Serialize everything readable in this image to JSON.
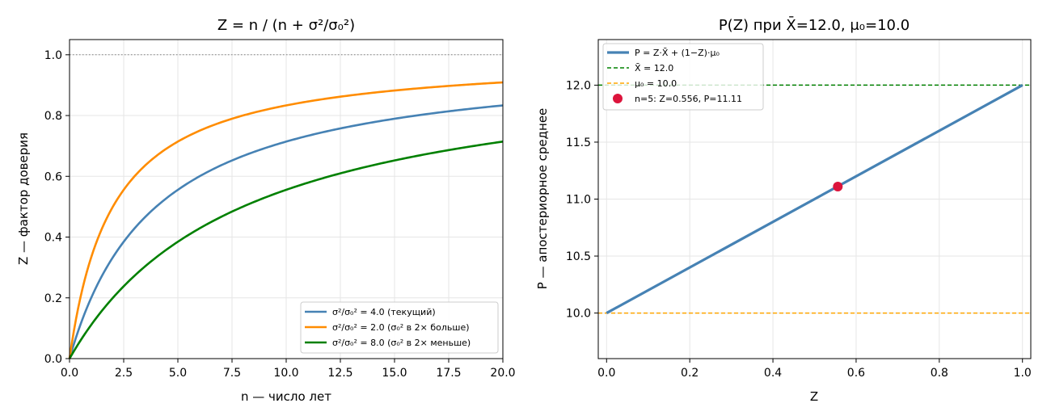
{
  "chart_data": [
    {
      "type": "line",
      "title": "Z = n / (n + σ²/σ₀²)",
      "xlabel": "n — число лет",
      "ylabel": "Z — фактор доверия",
      "xlim": [
        0,
        20
      ],
      "ylim": [
        0,
        1.05
      ],
      "xticks": [
        "0.0",
        "2.5",
        "5.0",
        "7.5",
        "10.0",
        "12.5",
        "15.0",
        "17.5",
        "20.0"
      ],
      "yticks": [
        "0.0",
        "0.2",
        "0.4",
        "0.6",
        "0.8",
        "1.0"
      ],
      "grid": true,
      "legend_position": "bottom-right",
      "reference_line": {
        "y": 1.0,
        "style": "dotted",
        "color": "#808080"
      },
      "series": [
        {
          "name": "σ²/σ₀² = 4.0 (текущий)",
          "k": 4.0,
          "color": "#4682b4",
          "x": [
            0,
            1,
            2,
            3,
            4,
            5,
            7.5,
            10,
            12.5,
            15,
            17.5,
            20
          ],
          "y": [
            0,
            0.2,
            0.333,
            0.429,
            0.5,
            0.556,
            0.652,
            0.714,
            0.758,
            0.789,
            0.814,
            0.833
          ]
        },
        {
          "name": "σ²/σ₀² = 2.0 (σ₀² в 2× больше)",
          "k": 2.0,
          "color": "#ff8c00",
          "x": [
            0,
            1,
            2,
            3,
            4,
            5,
            7.5,
            10,
            12.5,
            15,
            17.5,
            20
          ],
          "y": [
            0,
            0.333,
            0.5,
            0.6,
            0.667,
            0.714,
            0.789,
            0.833,
            0.862,
            0.882,
            0.897,
            0.909
          ]
        },
        {
          "name": "σ²/σ₀² = 8.0 (σ₀² в 2× меньше)",
          "k": 8.0,
          "color": "#008000",
          "x": [
            0,
            1,
            2,
            3,
            4,
            5,
            7.5,
            10,
            12.5,
            15,
            17.5,
            20
          ],
          "y": [
            0,
            0.111,
            0.2,
            0.273,
            0.333,
            0.385,
            0.484,
            0.556,
            0.61,
            0.652,
            0.686,
            0.714
          ]
        }
      ]
    },
    {
      "type": "line",
      "title": "P(Z) при X̄=12.0, μ₀=10.0",
      "xlabel": "Z",
      "ylabel": "P — апостериорное среднее",
      "xlim": [
        -0.02,
        1.02
      ],
      "ylim": [
        9.6,
        12.4
      ],
      "xticks": [
        "0.0",
        "0.2",
        "0.4",
        "0.6",
        "0.8",
        "1.0"
      ],
      "yticks": [
        "10.0",
        "10.5",
        "11.0",
        "11.5",
        "12.0"
      ],
      "grid": true,
      "legend_position": "top-left",
      "series": [
        {
          "name": "P = Z·X̄ + (1−Z)·μ₀",
          "color": "#4682b4",
          "x": [
            0,
            1
          ],
          "y": [
            10.0,
            12.0
          ]
        },
        {
          "name": "X̄ = 12.0",
          "color": "#008000",
          "style": "dashed",
          "y_const": 12.0
        },
        {
          "name": "μ₀ = 10.0",
          "color": "#ffa500",
          "style": "dashed",
          "y_const": 10.0
        },
        {
          "name": "n=5: Z=0.556, P=11.11",
          "color": "#dc143c",
          "marker": "circle",
          "x": [
            0.556
          ],
          "y": [
            11.11
          ]
        }
      ]
    }
  ]
}
